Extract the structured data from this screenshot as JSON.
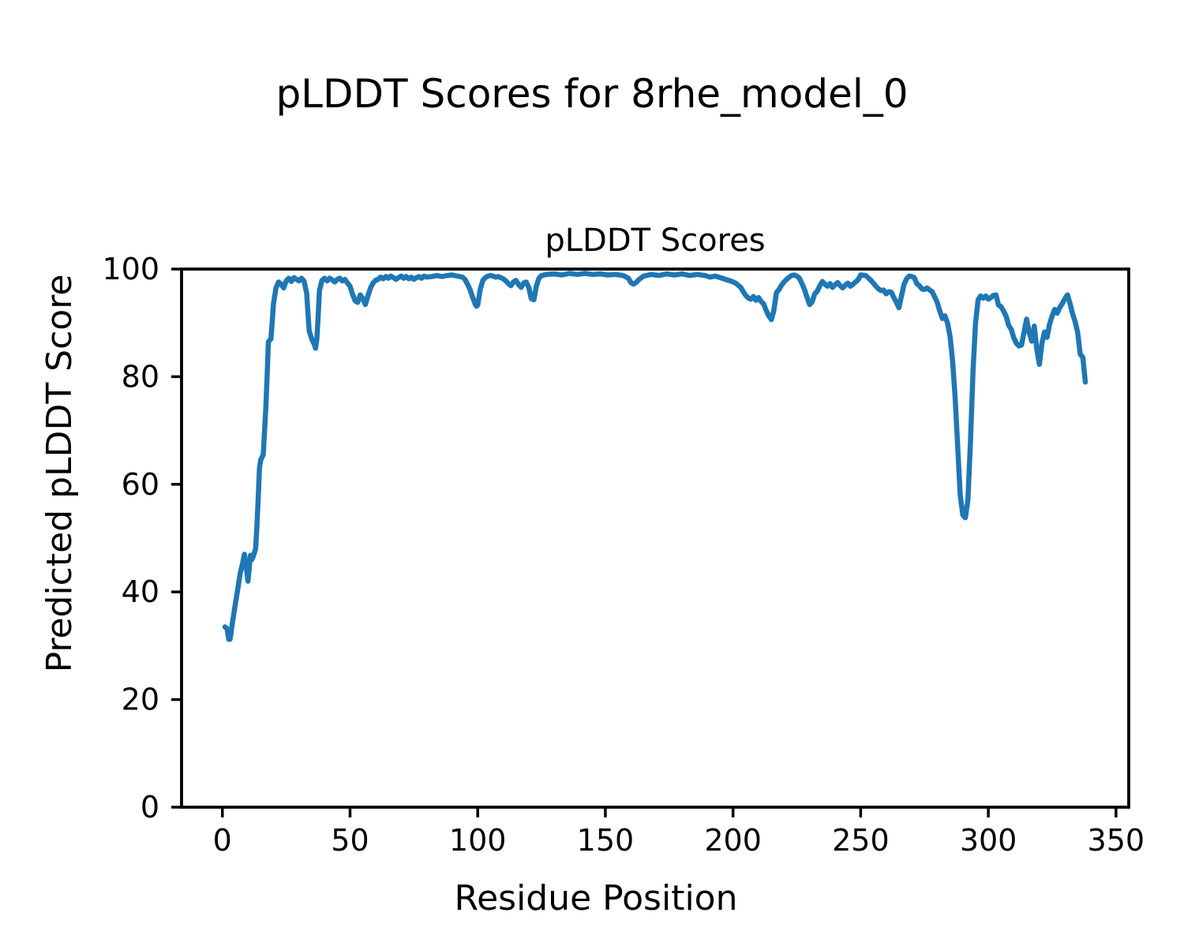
{
  "figure": {
    "suptitle": "pLDDT Scores for 8rhe_model_0",
    "background_color": "#ffffff",
    "text_color": "#000000",
    "spine_color": "#000000"
  },
  "chart_data": {
    "type": "line",
    "title": "pLDDT Scores",
    "xlabel": "Residue Position",
    "ylabel": "Predicted pLDDT Score",
    "xlim": [
      -16,
      355
    ],
    "ylim": [
      0,
      100
    ],
    "xticks": [
      0,
      50,
      100,
      150,
      200,
      250,
      300,
      350
    ],
    "yticks": [
      0,
      20,
      40,
      60,
      80,
      100
    ],
    "grid": false,
    "legend": false,
    "series": [
      {
        "name": "pLDDT",
        "color": "#1f77b4",
        "line_width": 6.5,
        "points": [
          [
            1,
            33.5
          ],
          [
            1.8,
            33.2
          ],
          [
            2.5,
            31.2
          ],
          [
            3,
            31.2
          ],
          [
            4,
            34.5
          ],
          [
            5,
            37.5
          ],
          [
            6,
            40.5
          ],
          [
            7,
            43.5
          ],
          [
            8,
            45.5
          ],
          [
            8.6,
            47
          ],
          [
            9.5,
            44
          ],
          [
            10,
            42
          ],
          [
            11,
            46.8
          ],
          [
            11.5,
            46
          ],
          [
            12,
            46.5
          ],
          [
            13,
            48
          ],
          [
            13.5,
            52
          ],
          [
            14,
            57
          ],
          [
            14.5,
            63
          ],
          [
            15,
            64.5
          ],
          [
            16,
            65.5
          ],
          [
            17,
            74
          ],
          [
            17.5,
            80
          ],
          [
            18,
            86.5
          ],
          [
            19,
            87
          ],
          [
            19.5,
            90
          ],
          [
            20,
            93.5
          ],
          [
            21,
            96.5
          ],
          [
            22,
            97.6
          ],
          [
            23,
            97.2
          ],
          [
            24,
            96.5
          ],
          [
            25,
            97.8
          ],
          [
            26,
            98.3
          ],
          [
            27,
            97.7
          ],
          [
            28,
            98.4
          ],
          [
            29,
            98.1
          ],
          [
            30,
            97.8
          ],
          [
            31,
            98.3
          ],
          [
            32,
            97.7
          ],
          [
            33,
            95.5
          ],
          [
            34,
            88.5
          ],
          [
            35,
            87
          ],
          [
            36,
            86
          ],
          [
            36.5,
            85.3
          ],
          [
            37,
            87
          ],
          [
            37.5,
            91
          ],
          [
            38,
            96
          ],
          [
            39,
            97.9
          ],
          [
            40,
            98.3
          ],
          [
            41,
            97.8
          ],
          [
            42,
            98.3
          ],
          [
            43,
            98
          ],
          [
            44,
            97.6
          ],
          [
            45,
            98.1
          ],
          [
            46,
            98.3
          ],
          [
            47,
            97.8
          ],
          [
            48,
            98.1
          ],
          [
            49,
            97.4
          ],
          [
            50,
            96.8
          ],
          [
            51,
            95.3
          ],
          [
            52,
            94.1
          ],
          [
            53,
            93.8
          ],
          [
            54,
            95.2
          ],
          [
            55,
            94.5
          ],
          [
            56,
            93.4
          ],
          [
            57,
            95
          ],
          [
            58,
            96.5
          ],
          [
            59,
            97.4
          ],
          [
            60,
            97.9
          ],
          [
            61,
            98.1
          ],
          [
            62,
            98.5
          ],
          [
            63,
            98.2
          ],
          [
            64,
            98.6
          ],
          [
            65,
            98.3
          ],
          [
            66,
            98.7
          ],
          [
            67,
            98.4
          ],
          [
            68,
            98.1
          ],
          [
            69,
            98.4
          ],
          [
            70,
            98.7
          ],
          [
            71,
            98.3
          ],
          [
            72,
            98.6
          ],
          [
            73,
            98.2
          ],
          [
            74,
            98.5
          ],
          [
            75,
            98.1
          ],
          [
            76,
            98.4
          ],
          [
            77,
            98.6
          ],
          [
            78,
            98.3
          ],
          [
            79,
            98.7
          ],
          [
            80,
            98.5
          ],
          [
            82,
            98.6
          ],
          [
            84,
            98.8
          ],
          [
            86,
            98.6
          ],
          [
            88,
            98.8
          ],
          [
            90,
            98.9
          ],
          [
            92,
            98.7
          ],
          [
            94,
            98.5
          ],
          [
            95,
            98.1
          ],
          [
            96,
            97.2
          ],
          [
            97,
            96.2
          ],
          [
            98,
            94.8
          ],
          [
            99,
            93.5
          ],
          [
            99.5,
            93.1
          ],
          [
            100,
            93.3
          ],
          [
            101,
            96.2
          ],
          [
            102,
            97.9
          ],
          [
            103,
            98.4
          ],
          [
            104,
            98.7
          ],
          [
            105,
            98.8
          ],
          [
            106,
            98.7
          ],
          [
            107,
            98.5
          ],
          [
            108,
            98.6
          ],
          [
            109,
            98.4
          ],
          [
            110,
            98.2
          ],
          [
            111,
            97.8
          ],
          [
            112,
            97.3
          ],
          [
            113,
            96.9
          ],
          [
            114,
            97.6
          ],
          [
            115,
            97.9
          ],
          [
            116,
            97.1
          ],
          [
            117,
            96.6
          ],
          [
            118,
            97.4
          ],
          [
            119,
            97.6
          ],
          [
            120,
            96.6
          ],
          [
            121,
            94.5
          ],
          [
            122,
            94.3
          ],
          [
            123,
            96.9
          ],
          [
            124,
            98.3
          ],
          [
            125,
            98.8
          ],
          [
            127,
            99
          ],
          [
            130,
            99.1
          ],
          [
            133,
            98.9
          ],
          [
            136,
            99.2
          ],
          [
            139,
            99
          ],
          [
            142,
            99.2
          ],
          [
            145,
            99
          ],
          [
            148,
            99.1
          ],
          [
            151,
            98.9
          ],
          [
            154,
            99
          ],
          [
            157,
            98.8
          ],
          [
            159,
            98.3
          ],
          [
            160,
            97.5
          ],
          [
            161,
            97.2
          ],
          [
            162,
            97.5
          ],
          [
            163,
            98
          ],
          [
            165,
            98.7
          ],
          [
            168,
            99
          ],
          [
            171,
            98.8
          ],
          [
            174,
            99.1
          ],
          [
            177,
            98.9
          ],
          [
            180,
            99.1
          ],
          [
            183,
            98.8
          ],
          [
            186,
            99
          ],
          [
            189,
            98.8
          ],
          [
            191,
            98.5
          ],
          [
            193,
            98.7
          ],
          [
            195,
            98.4
          ],
          [
            197,
            98.1
          ],
          [
            199,
            97.8
          ],
          [
            201,
            97.4
          ],
          [
            203,
            96.6
          ],
          [
            204,
            95.8
          ],
          [
            205,
            95.1
          ],
          [
            206,
            94.6
          ],
          [
            207,
            94.4
          ],
          [
            208,
            94.9
          ],
          [
            209,
            94.2
          ],
          [
            210,
            94.7
          ],
          [
            211,
            94
          ],
          [
            212,
            93.5
          ],
          [
            213,
            92.3
          ],
          [
            214,
            91.3
          ],
          [
            215,
            90.6
          ],
          [
            216,
            92.3
          ],
          [
            217,
            95.6
          ],
          [
            218,
            96.2
          ],
          [
            219,
            97
          ],
          [
            220,
            97.6
          ],
          [
            221,
            98.1
          ],
          [
            222,
            98.5
          ],
          [
            223,
            98.8
          ],
          [
            224,
            98.9
          ],
          [
            225,
            98.7
          ],
          [
            226,
            98.3
          ],
          [
            227,
            97.3
          ],
          [
            228,
            96.2
          ],
          [
            229,
            94.7
          ],
          [
            230,
            93.4
          ],
          [
            231,
            93.9
          ],
          [
            232,
            95.4
          ],
          [
            233,
            95.9
          ],
          [
            234,
            96.9
          ],
          [
            235,
            97.7
          ],
          [
            236,
            97.2
          ],
          [
            237,
            96.8
          ],
          [
            238,
            97.3
          ],
          [
            239,
            96.6
          ],
          [
            240,
            97.1
          ],
          [
            241,
            97.5
          ],
          [
            242,
            96.9
          ],
          [
            243,
            96.5
          ],
          [
            244,
            97
          ],
          [
            245,
            97.4
          ],
          [
            246,
            96.8
          ],
          [
            247,
            97.2
          ],
          [
            248,
            97.6
          ],
          [
            249,
            98
          ],
          [
            250,
            98.9
          ],
          [
            252,
            98.8
          ],
          [
            254,
            97.9
          ],
          [
            256,
            96.8
          ],
          [
            257,
            96.3
          ],
          [
            258,
            96
          ],
          [
            259,
            96.1
          ],
          [
            260,
            95.4
          ],
          [
            261,
            95.8
          ],
          [
            262,
            95.7
          ],
          [
            263,
            94.7
          ],
          [
            264,
            93.8
          ],
          [
            265,
            92.8
          ],
          [
            266,
            95
          ],
          [
            267,
            97.2
          ],
          [
            268,
            98.2
          ],
          [
            269,
            98.7
          ],
          [
            270,
            98.6
          ],
          [
            271,
            98.4
          ],
          [
            272,
            97.3
          ],
          [
            273,
            96.9
          ],
          [
            274,
            96.3
          ],
          [
            275,
            96.2
          ],
          [
            276,
            96.5
          ],
          [
            277,
            96.1
          ],
          [
            278,
            95.8
          ],
          [
            279,
            94.8
          ],
          [
            280,
            93.8
          ],
          [
            281,
            92.2
          ],
          [
            282,
            90.8
          ],
          [
            283,
            91.3
          ],
          [
            284,
            90
          ],
          [
            285,
            87.5
          ],
          [
            286,
            83
          ],
          [
            287,
            76
          ],
          [
            288,
            67
          ],
          [
            289,
            58
          ],
          [
            290,
            54.3
          ],
          [
            291,
            53.8
          ],
          [
            292,
            57
          ],
          [
            293,
            68
          ],
          [
            294,
            81
          ],
          [
            295,
            90
          ],
          [
            296,
            94.3
          ],
          [
            297,
            95
          ],
          [
            298,
            94.6
          ],
          [
            299,
            95
          ],
          [
            300,
            94.4
          ],
          [
            301,
            94.7
          ],
          [
            302,
            95.1
          ],
          [
            303,
            95.2
          ],
          [
            304,
            93.3
          ],
          [
            305,
            93
          ],
          [
            306,
            92.2
          ],
          [
            307,
            91.2
          ],
          [
            308,
            89.5
          ],
          [
            309,
            88.8
          ],
          [
            310,
            87.2
          ],
          [
            311,
            86.2
          ],
          [
            312,
            85.7
          ],
          [
            313,
            85.9
          ],
          [
            314,
            88.3
          ],
          [
            315,
            90.7
          ],
          [
            316,
            88.2
          ],
          [
            317,
            86.6
          ],
          [
            318,
            89.4
          ],
          [
            319,
            85
          ],
          [
            320,
            82.3
          ],
          [
            321,
            86.2
          ],
          [
            322,
            88.3
          ],
          [
            323,
            87.3
          ],
          [
            324,
            89.8
          ],
          [
            325,
            91.3
          ],
          [
            326,
            92.5
          ],
          [
            327,
            91.8
          ],
          [
            328,
            92.9
          ],
          [
            329,
            93.6
          ],
          [
            330,
            94.5
          ],
          [
            331,
            95.2
          ],
          [
            332,
            93.6
          ],
          [
            333,
            91.7
          ],
          [
            334,
            90.2
          ],
          [
            335,
            88.2
          ],
          [
            336,
            84.2
          ],
          [
            337,
            83.6
          ],
          [
            338,
            79
          ]
        ]
      }
    ]
  }
}
